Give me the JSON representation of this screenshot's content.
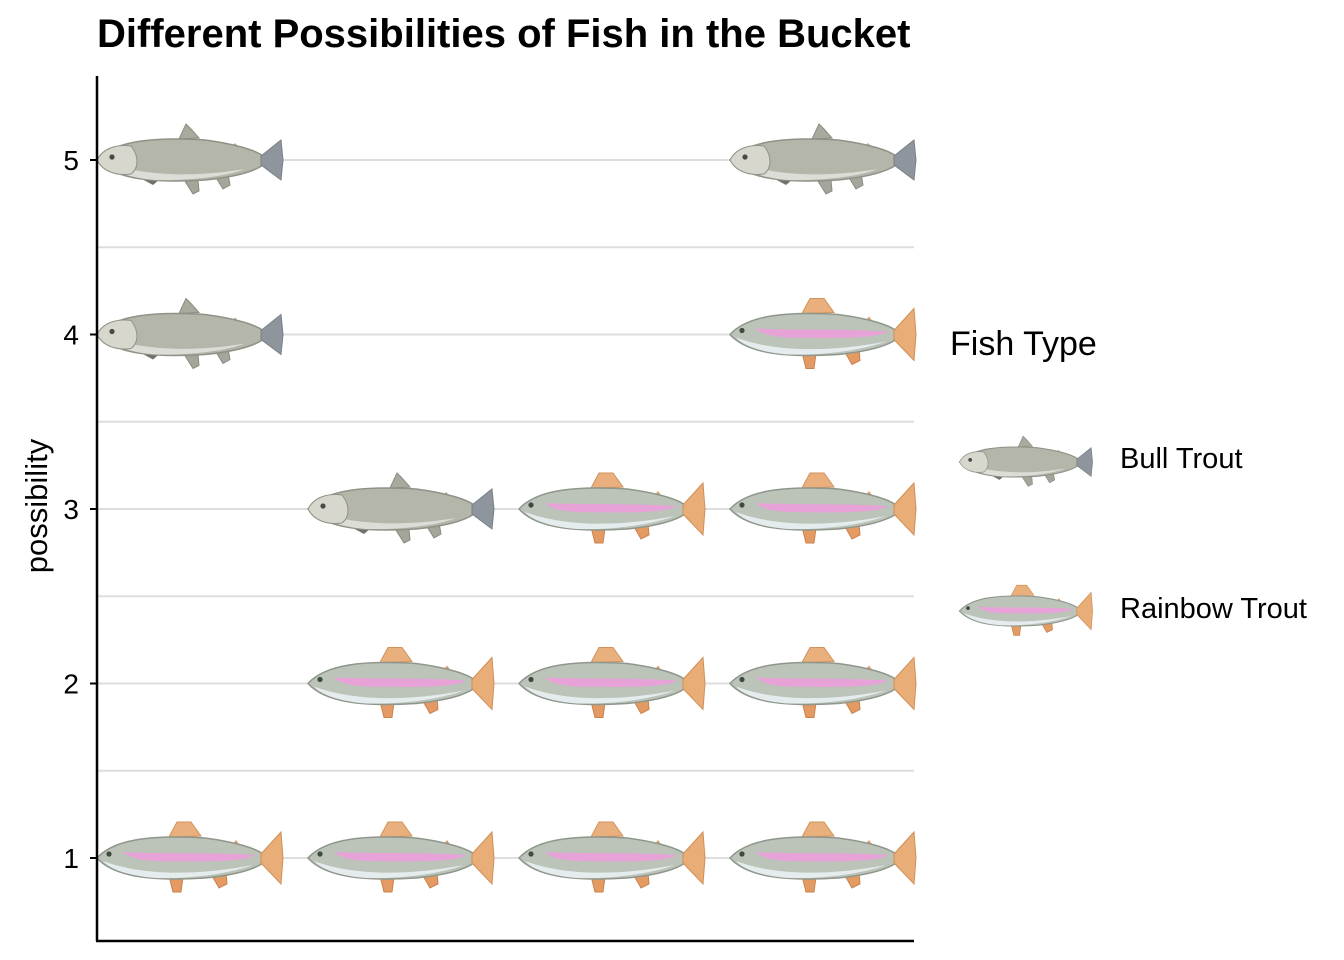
{
  "chart_data": {
    "type": "pictograph",
    "title": "Different Possibilities of Fish in the Bucket",
    "xlabel": "",
    "ylabel": "possibility",
    "yticks": [
      "1",
      "2",
      "3",
      "4",
      "5"
    ],
    "ylim": [
      0.45,
      5.45
    ],
    "grid": "horizontal",
    "legend": {
      "title": "Fish Type",
      "position": "right",
      "entries": [
        "Bull Trout",
        "Rainbow Trout"
      ]
    },
    "series": [
      {
        "name": "Bull Trout",
        "icon": "bull-trout-icon",
        "color": "#a9aca0"
      },
      {
        "name": "Rainbow Trout",
        "icon": "rainbow-trout-icon",
        "color": "#e59ad4"
      }
    ],
    "rows": [
      {
        "possibility": 1,
        "fish": [
          "Rainbow Trout",
          "Rainbow Trout",
          "Rainbow Trout",
          "Rainbow Trout"
        ]
      },
      {
        "possibility": 2,
        "fish": [
          null,
          "Rainbow Trout",
          "Rainbow Trout",
          "Rainbow Trout"
        ]
      },
      {
        "possibility": 3,
        "fish": [
          null,
          "Bull Trout",
          "Rainbow Trout",
          "Rainbow Trout"
        ]
      },
      {
        "possibility": 4,
        "fish": [
          "Bull Trout",
          null,
          null,
          "Rainbow Trout"
        ]
      },
      {
        "possibility": 5,
        "fish": [
          "Bull Trout",
          null,
          null,
          "Bull Trout"
        ]
      }
    ]
  }
}
